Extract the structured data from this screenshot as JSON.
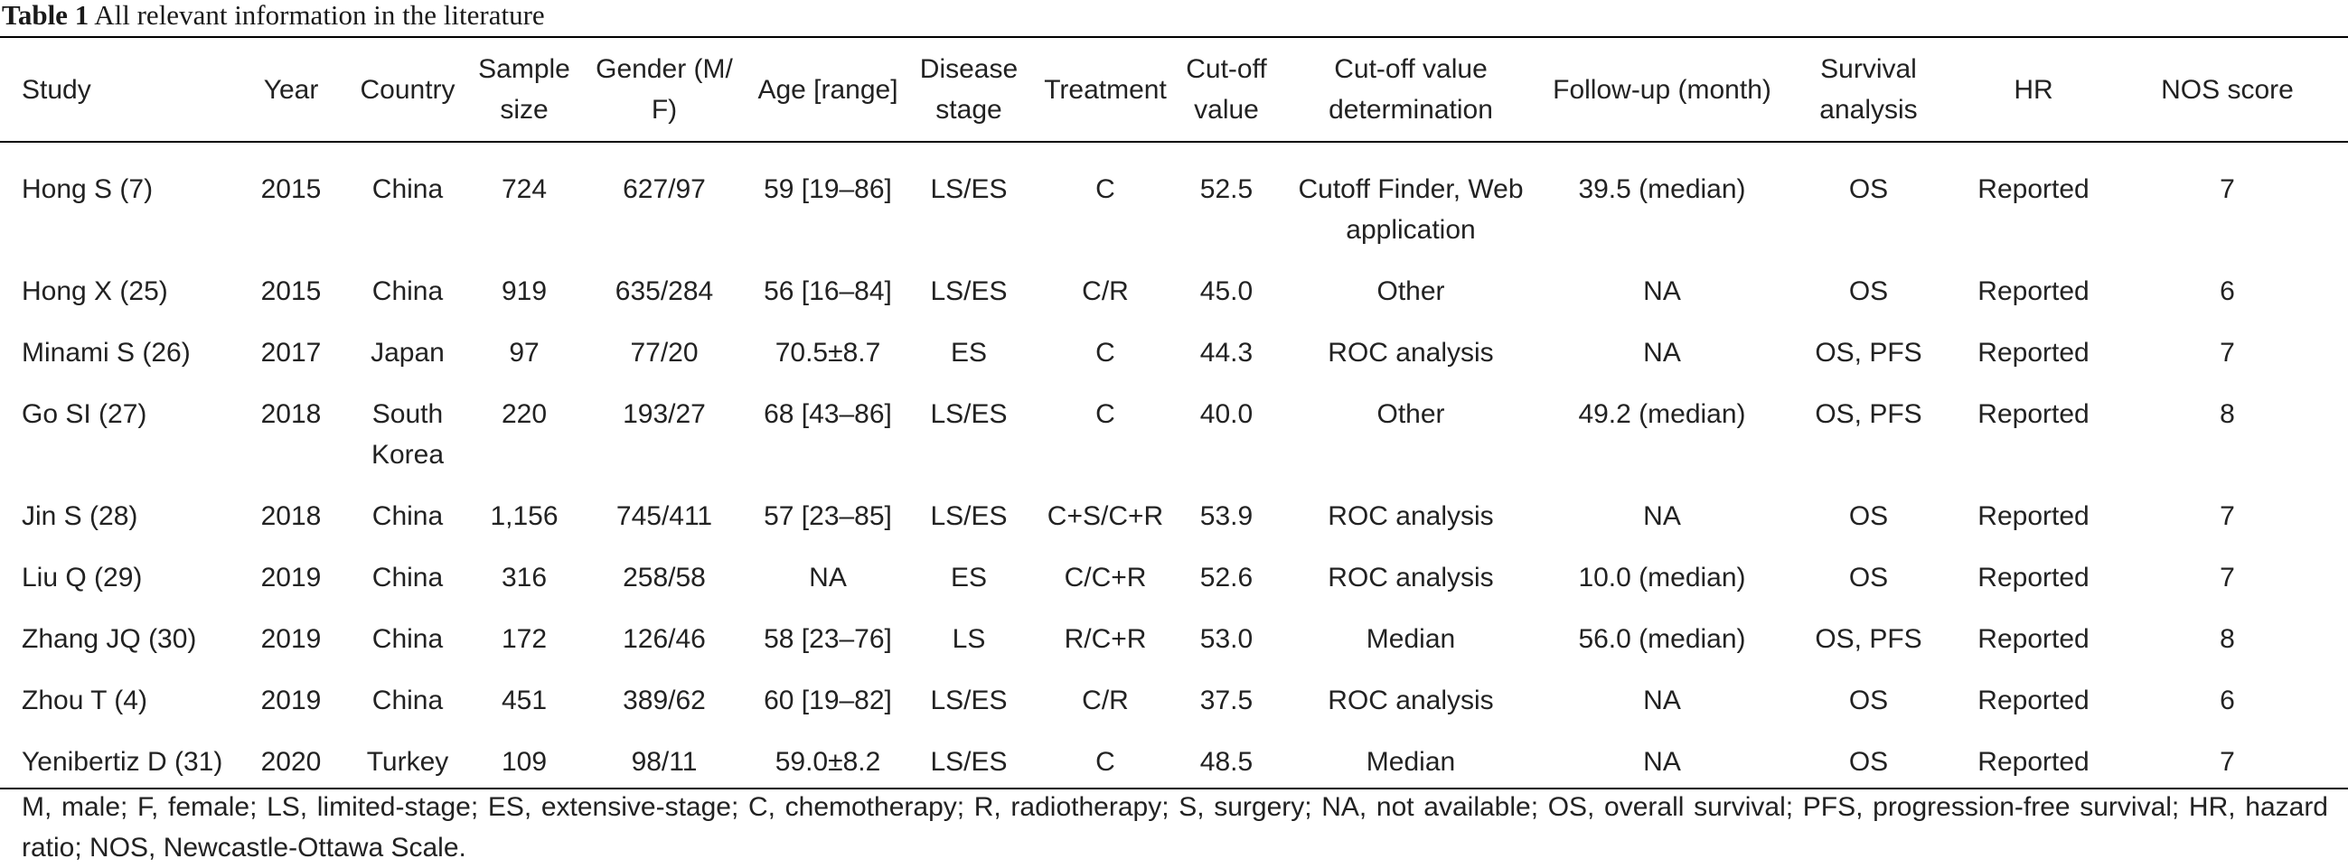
{
  "caption": {
    "label": "Table 1",
    "title": "All relevant information in the literature"
  },
  "columns": [
    {
      "key": "study",
      "label": "Study"
    },
    {
      "key": "year",
      "label": "Year"
    },
    {
      "key": "country",
      "label": "Country"
    },
    {
      "key": "sample",
      "label": "Sample size"
    },
    {
      "key": "gender",
      "label": "Gender (M/ F)"
    },
    {
      "key": "age",
      "label": "Age [range]"
    },
    {
      "key": "stage",
      "label": "Disease stage"
    },
    {
      "key": "treatment",
      "label": "Treatment"
    },
    {
      "key": "cutoff",
      "label": "Cut-off value"
    },
    {
      "key": "determination",
      "label": "Cut-off value determination"
    },
    {
      "key": "followup",
      "label": "Follow-up (month)"
    },
    {
      "key": "survival",
      "label": "Survival analysis"
    },
    {
      "key": "hr",
      "label": "HR"
    },
    {
      "key": "nos",
      "label": "NOS score"
    }
  ],
  "rows": [
    {
      "study": "Hong S (7)",
      "year": "2015",
      "country": "China",
      "sample": "724",
      "gender": "627/97",
      "age": "59 [19–86]",
      "stage": "LS/ES",
      "treatment": "C",
      "cutoff": "52.5",
      "determination": "Cutoff Finder, Web application",
      "followup": "39.5 (median)",
      "survival": "OS",
      "hr": "Reported",
      "nos": "7"
    },
    {
      "study": "Hong X (25)",
      "year": "2015",
      "country": "China",
      "sample": "919",
      "gender": "635/284",
      "age": "56 [16–84]",
      "stage": "LS/ES",
      "treatment": "C/R",
      "cutoff": "45.0",
      "determination": "Other",
      "followup": "NA",
      "survival": "OS",
      "hr": "Reported",
      "nos": "6"
    },
    {
      "study": "Minami S (26)",
      "year": "2017",
      "country": "Japan",
      "sample": "97",
      "gender": "77/20",
      "age": "70.5±8.7",
      "stage": "ES",
      "treatment": "C",
      "cutoff": "44.3",
      "determination": "ROC analysis",
      "followup": "NA",
      "survival": "OS, PFS",
      "hr": "Reported",
      "nos": "7"
    },
    {
      "study": "Go SI (27)",
      "year": "2018",
      "country": "South Korea",
      "sample": "220",
      "gender": "193/27",
      "age": "68 [43–86]",
      "stage": "LS/ES",
      "treatment": "C",
      "cutoff": "40.0",
      "determination": "Other",
      "followup": "49.2 (median)",
      "survival": "OS, PFS",
      "hr": "Reported",
      "nos": "8"
    },
    {
      "study": "Jin S (28)",
      "year": "2018",
      "country": "China",
      "sample": "1,156",
      "gender": "745/411",
      "age": "57 [23–85]",
      "stage": "LS/ES",
      "treatment": "C+S/C+R",
      "cutoff": "53.9",
      "determination": "ROC analysis",
      "followup": "NA",
      "survival": "OS",
      "hr": "Reported",
      "nos": "7"
    },
    {
      "study": "Liu Q (29)",
      "year": "2019",
      "country": "China",
      "sample": "316",
      "gender": "258/58",
      "age": "NA",
      "stage": "ES",
      "treatment": "C/C+R",
      "cutoff": "52.6",
      "determination": "ROC analysis",
      "followup": "10.0 (median)",
      "survival": "OS",
      "hr": "Reported",
      "nos": "7"
    },
    {
      "study": "Zhang JQ (30)",
      "year": "2019",
      "country": "China",
      "sample": "172",
      "gender": "126/46",
      "age": "58 [23–76]",
      "stage": "LS",
      "treatment": "R/C+R",
      "cutoff": "53.0",
      "determination": "Median",
      "followup": "56.0 (median)",
      "survival": "OS, PFS",
      "hr": "Reported",
      "nos": "8"
    },
    {
      "study": "Zhou T (4)",
      "year": "2019",
      "country": "China",
      "sample": "451",
      "gender": "389/62",
      "age": "60 [19–82]",
      "stage": "LS/ES",
      "treatment": "C/R",
      "cutoff": "37.5",
      "determination": "ROC analysis",
      "followup": "NA",
      "survival": "OS",
      "hr": "Reported",
      "nos": "6"
    },
    {
      "study": "Yenibertiz D (31)",
      "year": "2020",
      "country": "Turkey",
      "sample": "109",
      "gender": "98/11",
      "age": "59.0±8.2",
      "stage": "LS/ES",
      "treatment": "C",
      "cutoff": "48.5",
      "determination": "Median",
      "followup": "NA",
      "survival": "OS",
      "hr": "Reported",
      "nos": "7"
    }
  ],
  "footnote": "M, male; F, female; LS, limited-stage; ES, extensive-stage; C, chemotherapy; R, radiotherapy; S, surgery; NA, not available; OS, overall survival; PFS, progression-free survival; HR, hazard ratio; NOS, Newcastle-Ottawa Scale."
}
